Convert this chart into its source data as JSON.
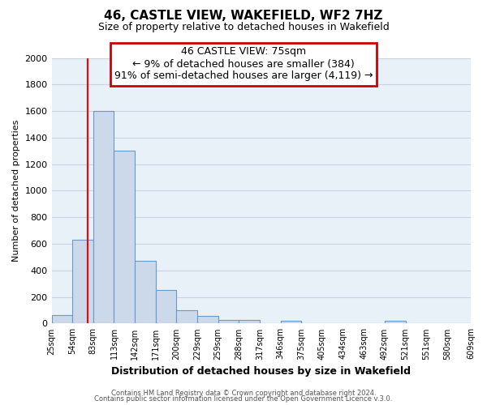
{
  "title": "46, CASTLE VIEW, WAKEFIELD, WF2 7HZ",
  "subtitle": "Size of property relative to detached houses in Wakefield",
  "xlabel": "Distribution of detached houses by size in Wakefield",
  "ylabel": "Number of detached properties",
  "bar_values": [
    65,
    630,
    1600,
    1300,
    475,
    250,
    100,
    55,
    30,
    25,
    0,
    20,
    0,
    0,
    0,
    0,
    20,
    0,
    0,
    0
  ],
  "bin_edges": [
    25,
    54,
    83,
    112,
    141,
    170,
    199,
    228,
    257,
    286,
    315,
    344,
    373,
    402,
    431,
    460,
    489,
    518,
    547,
    576,
    609
  ],
  "tick_labels": [
    "25sqm",
    "54sqm",
    "83sqm",
    "113sqm",
    "142sqm",
    "171sqm",
    "200sqm",
    "229sqm",
    "259sqm",
    "288sqm",
    "317sqm",
    "346sqm",
    "375sqm",
    "405sqm",
    "434sqm",
    "463sqm",
    "492sqm",
    "521sqm",
    "551sqm",
    "580sqm",
    "609sqm"
  ],
  "bar_color": "#ccd9ea",
  "bar_edge_color": "#6699cc",
  "red_line_x": 75,
  "ylim": [
    0,
    2000
  ],
  "yticks": [
    0,
    200,
    400,
    600,
    800,
    1000,
    1200,
    1400,
    1600,
    1800,
    2000
  ],
  "annotation_title": "46 CASTLE VIEW: 75sqm",
  "annotation_line1": "← 9% of detached houses are smaller (384)",
  "annotation_line2": "91% of semi-detached houses are larger (4,119) →",
  "annotation_box_color": "#ffffff",
  "annotation_box_edge": "#cc0000",
  "footer1": "Contains HM Land Registry data © Crown copyright and database right 2024.",
  "footer2": "Contains public sector information licensed under the Open Government Licence v.3.0.",
  "grid_color": "#c8d4e3",
  "background_color": "#e8f0f8"
}
